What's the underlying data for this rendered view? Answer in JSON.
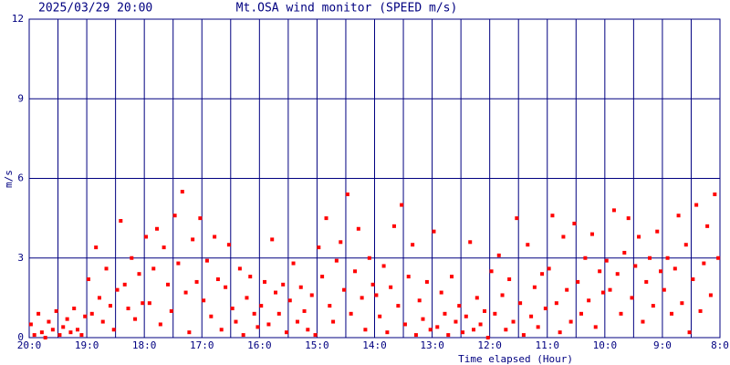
{
  "chart_data": {
    "type": "scatter",
    "title": "Mt.OSA wind monitor (SPEED m/s)",
    "subtitle": "2025/03/29 20:00",
    "x_label": "Time elapsed (Hour)",
    "y_label": "m/s",
    "color": "#ff0000",
    "grid_color": "#000080",
    "xlim": [
      0,
      12
    ],
    "ylim": [
      0,
      12
    ],
    "yticks": [
      0,
      3,
      6,
      9,
      12
    ],
    "xticks": [
      {
        "value": 0,
        "label": "20:0"
      },
      {
        "value": 1,
        "label": "19:0"
      },
      {
        "value": 2,
        "label": "18:0"
      },
      {
        "value": 3,
        "label": "17:0"
      },
      {
        "value": 4,
        "label": "16:0"
      },
      {
        "value": 5,
        "label": "15:0"
      },
      {
        "value": 6,
        "label": "14:0"
      },
      {
        "value": 7,
        "label": "13:0"
      },
      {
        "value": 8,
        "label": "12:0"
      },
      {
        "value": 9,
        "label": "11:0"
      },
      {
        "value": 10,
        "label": "10:0"
      },
      {
        "value": 11,
        "label": "9:0"
      },
      {
        "value": 12,
        "label": "8:0"
      }
    ],
    "xminorticks": [
      0.5,
      1.5,
      2.5,
      3.5,
      4.5,
      5.5,
      6.5,
      7.5,
      8.5,
      9.5,
      10.5,
      11.5
    ],
    "grid": true,
    "x": [
      0.03,
      0.09,
      0.16,
      0.22,
      0.28,
      0.34,
      0.41,
      0.47,
      0.53,
      0.59,
      0.66,
      0.72,
      0.78,
      0.84,
      0.91,
      0.97,
      1.03,
      1.09,
      1.16,
      1.22,
      1.28,
      1.34,
      1.41,
      1.47,
      1.53,
      1.59,
      1.66,
      1.72,
      1.78,
      1.84,
      1.91,
      1.97,
      2.03,
      2.09,
      2.16,
      2.22,
      2.28,
      2.34,
      2.41,
      2.47,
      2.53,
      2.59,
      2.66,
      2.72,
      2.78,
      2.84,
      2.91,
      2.97,
      3.03,
      3.09,
      3.16,
      3.22,
      3.28,
      3.34,
      3.41,
      3.47,
      3.53,
      3.59,
      3.66,
      3.72,
      3.78,
      3.84,
      3.91,
      3.97,
      4.03,
      4.09,
      4.16,
      4.22,
      4.28,
      4.34,
      4.41,
      4.47,
      4.53,
      4.59,
      4.66,
      4.72,
      4.78,
      4.84,
      4.91,
      4.97,
      5.03,
      5.09,
      5.16,
      5.22,
      5.28,
      5.34,
      5.41,
      5.47,
      5.53,
      5.59,
      5.66,
      5.72,
      5.78,
      5.84,
      5.91,
      5.97,
      6.03,
      6.09,
      6.16,
      6.22,
      6.28,
      6.34,
      6.41,
      6.47,
      6.53,
      6.59,
      6.66,
      6.72,
      6.78,
      6.84,
      6.91,
      6.97,
      7.03,
      7.09,
      7.16,
      7.22,
      7.28,
      7.34,
      7.41,
      7.47,
      7.53,
      7.59,
      7.66,
      7.72,
      7.78,
      7.84,
      7.91,
      7.97,
      8.03,
      8.09,
      8.16,
      8.22,
      8.28,
      8.34,
      8.41,
      8.47,
      8.53,
      8.59,
      8.66,
      8.72,
      8.78,
      8.84,
      8.91,
      8.97,
      9.03,
      9.09,
      9.16,
      9.22,
      9.28,
      9.34,
      9.41,
      9.47,
      9.53,
      9.59,
      9.66,
      9.72,
      9.78,
      9.84,
      9.91,
      9.97,
      10.03,
      10.09,
      10.16,
      10.22,
      10.28,
      10.34,
      10.41,
      10.47,
      10.53,
      10.59,
      10.66,
      10.72,
      10.78,
      10.84,
      10.91,
      10.97,
      11.03,
      11.09,
      11.16,
      11.22,
      11.28,
      11.34,
      11.41,
      11.47,
      11.53,
      11.59,
      11.66,
      11.72,
      11.78,
      11.84,
      11.91,
      11.97
    ],
    "values": [
      0.5,
      0.1,
      0.9,
      0.2,
      0,
      0.6,
      0.3,
      1.0,
      0.1,
      0.4,
      0.7,
      0.2,
      1.1,
      0.3,
      0.1,
      0.8,
      2.2,
      0.9,
      3.4,
      1.5,
      0.6,
      2.6,
      1.2,
      0.3,
      1.8,
      4.4,
      2.0,
      1.1,
      3.0,
      0.7,
      2.4,
      1.3,
      3.8,
      1.3,
      2.6,
      4.1,
      0.5,
      3.4,
      2.0,
      1.0,
      4.6,
      2.8,
      5.5,
      1.7,
      0.2,
      3.7,
      2.1,
      4.5,
      1.4,
      2.9,
      0.8,
      3.8,
      2.2,
      0.3,
      1.9,
      3.5,
      1.1,
      0.6,
      2.6,
      0.1,
      1.5,
      2.3,
      0.9,
      0.4,
      1.2,
      2.1,
      0.5,
      3.7,
      1.7,
      0.9,
      2.0,
      0.2,
      1.4,
      2.8,
      0.6,
      1.9,
      1.0,
      0.3,
      1.6,
      0.1,
      3.4,
      2.3,
      4.5,
      1.2,
      0.6,
      2.9,
      3.6,
      1.8,
      5.4,
      0.9,
      2.5,
      4.1,
      1.5,
      0.3,
      3.0,
      2.0,
      1.6,
      0.8,
      2.7,
      0.2,
      1.9,
      4.2,
      1.2,
      5.0,
      0.5,
      2.3,
      3.5,
      0.1,
      1.4,
      0.7,
      2.1,
      0.3,
      4.0,
      0.4,
      1.7,
      0.9,
      0.1,
      2.3,
      0.6,
      1.2,
      0.2,
      0.8,
      3.6,
      0.3,
      1.5,
      0.5,
      1.0,
      0,
      2.5,
      0.9,
      3.1,
      1.6,
      0.3,
      2.2,
      0.6,
      4.5,
      1.3,
      0.1,
      3.5,
      0.8,
      1.9,
      0.4,
      2.4,
      1.1,
      2.6,
      4.6,
      1.3,
      0.2,
      3.8,
      1.8,
      0.6,
      4.3,
      2.1,
      0.9,
      3.0,
      1.4,
      3.9,
      0.4,
      2.5,
      1.7,
      2.9,
      1.8,
      4.8,
      2.4,
      0.9,
      3.2,
      4.5,
      1.5,
      2.7,
      3.8,
      0.6,
      2.1,
      3.0,
      1.2,
      4.0,
      2.5,
      1.8,
      3.0,
      0.9,
      2.6,
      4.6,
      1.3,
      3.5,
      0.2,
      2.2,
      5.0,
      1.0,
      2.8,
      4.2,
      1.6,
      5.4,
      3.0
    ]
  }
}
